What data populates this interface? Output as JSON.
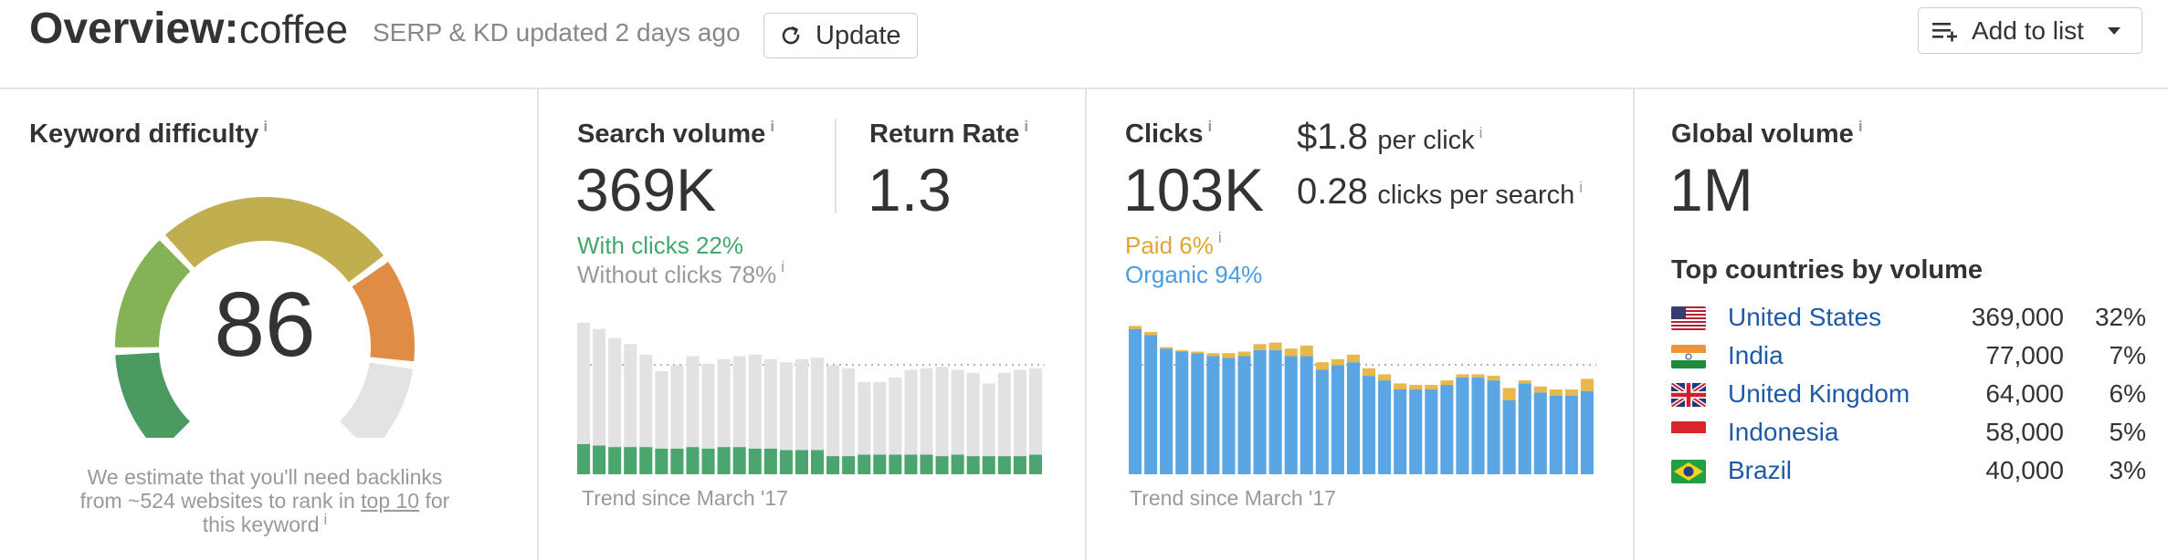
{
  "header": {
    "title": "Overview:",
    "keyword": "coffee",
    "subtitle": "SERP & KD updated 2 days ago",
    "update_label": "Update",
    "add_to_list_label": "Add to list"
  },
  "kd": {
    "label": "Keyword difficulty",
    "value": "86",
    "value_fraction": 0.86,
    "note_1": "We estimate that you'll need backlinks",
    "note_2a": "from ~524 websites to rank in",
    "note_link": "top 10",
    "note_2b": "for",
    "note_3": "this keyword"
  },
  "search_volume": {
    "label": "Search volume",
    "value": "369K",
    "return_rate_label": "Return Rate",
    "return_rate": "1.3",
    "with_clicks": "With clicks 22%",
    "without_clicks": "Without clicks 78%",
    "trend_label": "Trend since March '17"
  },
  "clicks": {
    "label": "Clicks",
    "value": "103K",
    "cpc_value": "$1.8",
    "cpc_label": "per click",
    "cps_value": "0.28",
    "cps_label": "clicks per search",
    "paid": "Paid 6%",
    "organic": "Organic 94%",
    "trend_label": "Trend since March '17"
  },
  "global": {
    "label": "Global volume",
    "value": "1M",
    "top_label": "Top countries by volume",
    "countries": [
      {
        "name": "United States",
        "volume": "369,000",
        "pct": "32%",
        "flag": "us-flag"
      },
      {
        "name": "India",
        "volume": "77,000",
        "pct": "7%",
        "flag": "india-flag"
      },
      {
        "name": "United Kingdom",
        "volume": "64,000",
        "pct": "6%",
        "flag": "uk-flag"
      },
      {
        "name": "Indonesia",
        "volume": "58,000",
        "pct": "5%",
        "flag": "indonesia-flag"
      },
      {
        "name": "Brazil",
        "volume": "40,000",
        "pct": "3%",
        "flag": "brazil-flag"
      }
    ]
  },
  "colors": {
    "green": "#3fa96b",
    "bar_green": "#4aa66e",
    "bar_gray": "#e2e2e4",
    "bar_blue": "#5aa5e3",
    "bar_orange": "#e8b84a",
    "link_blue": "#1f5aa6",
    "gauge": [
      "#4b9a62",
      "#86b256",
      "#c0ae4f",
      "#e08c45",
      "#dc6a3a",
      "#e3e3e3"
    ]
  },
  "chart_data": [
    {
      "type": "bar",
      "title": "Search volume trend",
      "series": [
        {
          "name": "With clicks",
          "values": [
            0.2,
            0.19,
            0.18,
            0.18,
            0.18,
            0.17,
            0.17,
            0.18,
            0.17,
            0.18,
            0.18,
            0.17,
            0.17,
            0.16,
            0.16,
            0.16,
            0.12,
            0.12,
            0.13,
            0.13,
            0.13,
            0.13,
            0.13,
            0.12,
            0.13,
            0.12,
            0.12,
            0.12,
            0.12,
            0.13
          ]
        },
        {
          "name": "Without clicks",
          "values": [
            0.8,
            0.77,
            0.72,
            0.68,
            0.61,
            0.51,
            0.55,
            0.6,
            0.56,
            0.58,
            0.6,
            0.62,
            0.59,
            0.58,
            0.6,
            0.61,
            0.6,
            0.58,
            0.48,
            0.48,
            0.51,
            0.56,
            0.57,
            0.59,
            0.56,
            0.55,
            0.48,
            0.55,
            0.57,
            0.57
          ]
        }
      ],
      "ylim": [
        0,
        1
      ]
    },
    {
      "type": "bar",
      "title": "Clicks trend",
      "series": [
        {
          "name": "Organic",
          "values": [
            0.96,
            0.92,
            0.83,
            0.81,
            0.8,
            0.78,
            0.77,
            0.78,
            0.82,
            0.82,
            0.78,
            0.78,
            0.69,
            0.72,
            0.74,
            0.65,
            0.62,
            0.56,
            0.56,
            0.56,
            0.59,
            0.64,
            0.64,
            0.62,
            0.49,
            0.6,
            0.54,
            0.52,
            0.52,
            0.55
          ]
        },
        {
          "name": "Paid",
          "values": [
            0.02,
            0.02,
            0.01,
            0.01,
            0.01,
            0.02,
            0.03,
            0.03,
            0.04,
            0.05,
            0.05,
            0.07,
            0.05,
            0.04,
            0.05,
            0.05,
            0.04,
            0.04,
            0.03,
            0.03,
            0.03,
            0.02,
            0.02,
            0.03,
            0.08,
            0.02,
            0.04,
            0.04,
            0.04,
            0.08
          ]
        }
      ],
      "ylim": [
        0,
        1
      ]
    }
  ]
}
